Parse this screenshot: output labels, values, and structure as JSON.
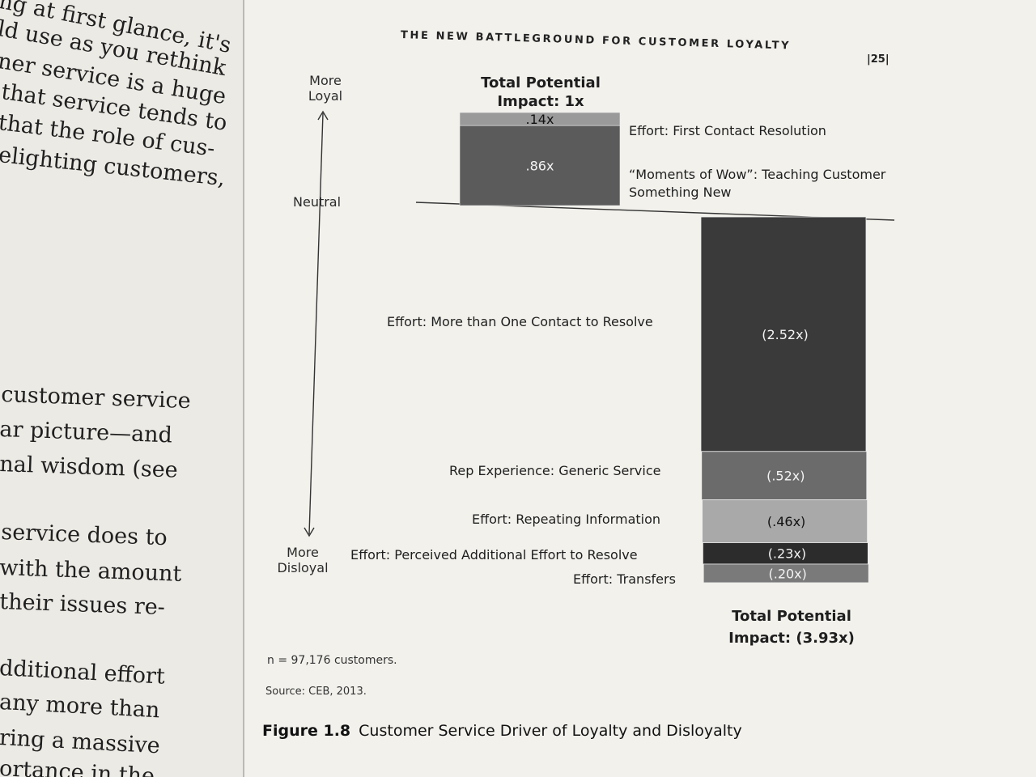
{
  "left_page": {
    "lines": [
      "ng at first glance, it's",
      "ld use as you rethink",
      "ner service is a huge",
      "that service tends to",
      "that the role of cus-",
      "elighting customers,",
      "customer service",
      "ar picture—and",
      "nal wisdom (see",
      "service does to",
      "with the amount",
      "their issues re-",
      "dditional effort",
      "any more than",
      "ring a massive",
      "ortance in the"
    ]
  },
  "right_page": {
    "header": "THE NEW BATTLEGROUND FOR CUSTOMER LOYALTY",
    "page_number": "|25|"
  },
  "chart_data": {
    "type": "bar",
    "subtype": "waterfall",
    "axis": {
      "top_label": "More Loyal",
      "middle_label": "Neutral",
      "bottom_label": "More Disloyal"
    },
    "loyalty_total": {
      "label": "Total Potential Impact: 1x",
      "value": 1.0
    },
    "loyalty_segments": [
      {
        "name": "Effort: First Contact Resolution",
        "label": ".14x",
        "value": 0.14,
        "color": "#9a9a9a"
      },
      {
        "name": "“Moments of Wow”: Teaching Customer Something New",
        "label": ".86x",
        "value": 0.86,
        "color": "#5b5b5b"
      }
    ],
    "disloyalty_total": {
      "label": "Total Potential Impact: (3.93x)",
      "value": -3.93
    },
    "disloyalty_segments": [
      {
        "name": "Effort: More than One Contact to Resolve",
        "label": "(2.52x)",
        "value": -2.52,
        "color": "#3a3a3a"
      },
      {
        "name": "Rep Experience: Generic Service",
        "label": "(.52x)",
        "value": -0.52,
        "color": "#6b6b6b"
      },
      {
        "name": "Effort: Repeating Information",
        "label": "(.46x)",
        "value": -0.46,
        "color": "#a9a9a9"
      },
      {
        "name": "Effort: Perceived Additional Effort to Resolve",
        "label": "(.23x)",
        "value": -0.23,
        "color": "#2c2c2c"
      },
      {
        "name": "Effort: Transfers",
        "label": "(.20x)",
        "value": -0.2,
        "color": "#7a7a7a"
      }
    ],
    "note": "n = 97,176 customers.",
    "source": "Source: CEB, 2013.",
    "caption_label": "Figure 1.8",
    "caption_title": "Customer Service Driver of Loyalty and Disloyalty"
  }
}
